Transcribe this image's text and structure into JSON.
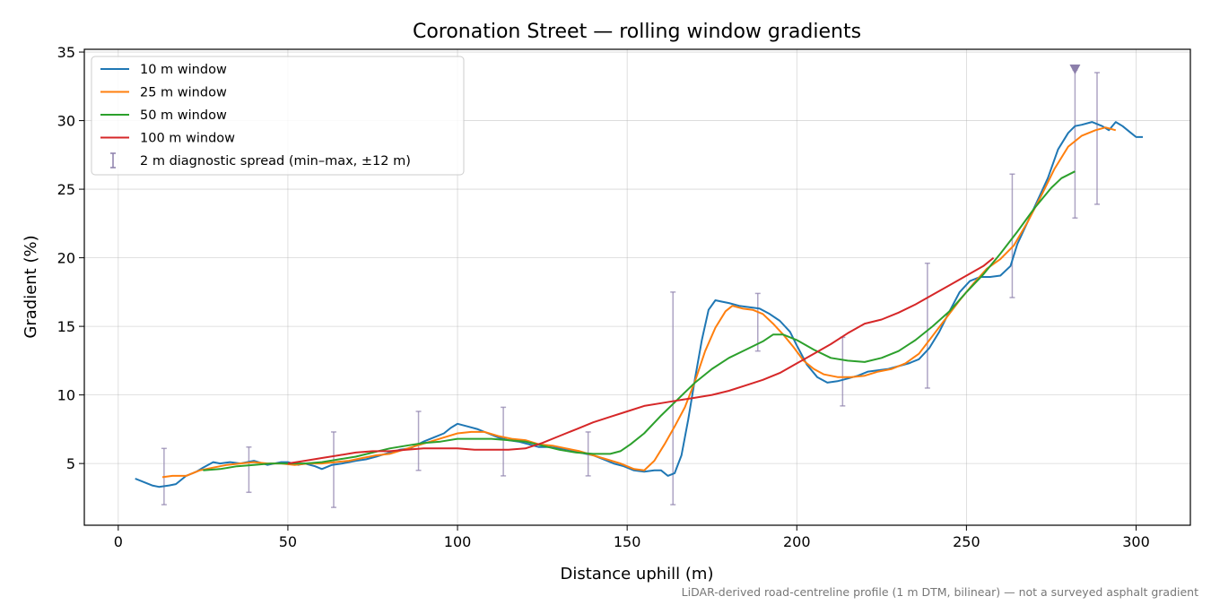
{
  "chart_data": {
    "type": "line",
    "title": "Coronation Street — rolling window gradients",
    "xlabel": "Distance uphill (m)",
    "ylabel": "Gradient (%)",
    "xlim": [
      -10,
      316
    ],
    "ylim": [
      0.5,
      35.2
    ],
    "xticks": [
      0,
      50,
      100,
      150,
      200,
      250,
      300
    ],
    "yticks": [
      5,
      10,
      15,
      20,
      25,
      30,
      35
    ],
    "grid": true,
    "legend_position": "top-left",
    "footnote": "LiDAR-derived road-centreline profile (1 m DTM, bilinear) — not a surveyed asphalt gradient",
    "series": [
      {
        "name": "10 m window",
        "color": "#1f77b4",
        "points": [
          [
            5,
            3.9
          ],
          [
            8,
            3.6
          ],
          [
            10,
            3.4
          ],
          [
            12,
            3.3
          ],
          [
            15,
            3.4
          ],
          [
            17,
            3.5
          ],
          [
            20,
            4.1
          ],
          [
            23,
            4.4
          ],
          [
            25,
            4.7
          ],
          [
            28,
            5.1
          ],
          [
            30,
            5.0
          ],
          [
            33,
            5.1
          ],
          [
            36,
            5.0
          ],
          [
            40,
            5.2
          ],
          [
            44,
            4.9
          ],
          [
            48,
            5.1
          ],
          [
            50,
            5.1
          ],
          [
            53,
            4.9
          ],
          [
            55,
            5.0
          ],
          [
            58,
            4.8
          ],
          [
            60,
            4.6
          ],
          [
            63,
            4.9
          ],
          [
            66,
            5.0
          ],
          [
            70,
            5.2
          ],
          [
            73,
            5.3
          ],
          [
            76,
            5.5
          ],
          [
            80,
            5.8
          ],
          [
            83,
            6.0
          ],
          [
            86,
            6.1
          ],
          [
            90,
            6.6
          ],
          [
            93,
            6.9
          ],
          [
            96,
            7.2
          ],
          [
            98,
            7.6
          ],
          [
            100,
            7.9
          ],
          [
            103,
            7.7
          ],
          [
            106,
            7.5
          ],
          [
            109,
            7.2
          ],
          [
            112,
            6.9
          ],
          [
            115,
            6.7
          ],
          [
            118,
            6.6
          ],
          [
            121,
            6.4
          ],
          [
            124,
            6.2
          ],
          [
            127,
            6.2
          ],
          [
            130,
            6.1
          ],
          [
            133,
            6.0
          ],
          [
            136,
            5.8
          ],
          [
            140,
            5.6
          ],
          [
            143,
            5.3
          ],
          [
            146,
            5.0
          ],
          [
            149,
            4.8
          ],
          [
            152,
            4.5
          ],
          [
            155,
            4.4
          ],
          [
            158,
            4.5
          ],
          [
            160,
            4.5
          ],
          [
            162,
            4.1
          ],
          [
            164,
            4.3
          ],
          [
            166,
            5.6
          ],
          [
            168,
            8.2
          ],
          [
            170,
            11.2
          ],
          [
            172,
            14.0
          ],
          [
            174,
            16.2
          ],
          [
            176,
            16.9
          ],
          [
            178,
            16.8
          ],
          [
            180,
            16.7
          ],
          [
            183,
            16.5
          ],
          [
            186,
            16.4
          ],
          [
            189,
            16.3
          ],
          [
            192,
            15.9
          ],
          [
            195,
            15.4
          ],
          [
            198,
            14.6
          ],
          [
            200,
            13.6
          ],
          [
            203,
            12.2
          ],
          [
            206,
            11.3
          ],
          [
            209,
            10.9
          ],
          [
            212,
            11.0
          ],
          [
            215,
            11.2
          ],
          [
            218,
            11.4
          ],
          [
            221,
            11.7
          ],
          [
            224,
            11.8
          ],
          [
            227,
            11.9
          ],
          [
            230,
            12.1
          ],
          [
            233,
            12.3
          ],
          [
            236,
            12.6
          ],
          [
            239,
            13.4
          ],
          [
            242,
            14.6
          ],
          [
            245,
            16.1
          ],
          [
            248,
            17.5
          ],
          [
            251,
            18.3
          ],
          [
            254,
            18.6
          ],
          [
            257,
            18.6
          ],
          [
            260,
            18.7
          ],
          [
            263,
            19.4
          ],
          [
            265,
            21.0
          ],
          [
            268,
            22.6
          ],
          [
            271,
            24.2
          ],
          [
            274,
            25.8
          ],
          [
            277,
            27.9
          ],
          [
            280,
            29.1
          ],
          [
            282,
            29.6
          ],
          [
            284,
            29.7
          ],
          [
            287,
            29.9
          ],
          [
            290,
            29.6
          ],
          [
            292,
            29.3
          ],
          [
            294,
            29.9
          ],
          [
            296,
            29.6
          ],
          [
            298,
            29.2
          ],
          [
            300,
            28.8
          ],
          [
            302,
            28.8
          ]
        ]
      },
      {
        "name": "25 m window",
        "color": "#ff7f0e",
        "points": [
          [
            13,
            4.0
          ],
          [
            16,
            4.1
          ],
          [
            20,
            4.1
          ],
          [
            24,
            4.5
          ],
          [
            28,
            4.7
          ],
          [
            32,
            4.9
          ],
          [
            36,
            5.0
          ],
          [
            40,
            5.1
          ],
          [
            44,
            5.0
          ],
          [
            48,
            5.0
          ],
          [
            52,
            4.9
          ],
          [
            56,
            5.0
          ],
          [
            60,
            5.0
          ],
          [
            64,
            5.1
          ],
          [
            68,
            5.2
          ],
          [
            72,
            5.4
          ],
          [
            76,
            5.6
          ],
          [
            80,
            5.7
          ],
          [
            84,
            6.0
          ],
          [
            88,
            6.3
          ],
          [
            92,
            6.6
          ],
          [
            96,
            6.9
          ],
          [
            100,
            7.2
          ],
          [
            104,
            7.3
          ],
          [
            108,
            7.3
          ],
          [
            112,
            7.0
          ],
          [
            116,
            6.8
          ],
          [
            120,
            6.7
          ],
          [
            124,
            6.4
          ],
          [
            128,
            6.3
          ],
          [
            132,
            6.1
          ],
          [
            136,
            5.9
          ],
          [
            140,
            5.6
          ],
          [
            144,
            5.3
          ],
          [
            148,
            5.0
          ],
          [
            152,
            4.6
          ],
          [
            155,
            4.5
          ],
          [
            158,
            5.2
          ],
          [
            161,
            6.4
          ],
          [
            164,
            7.7
          ],
          [
            167,
            9.1
          ],
          [
            170,
            11.0
          ],
          [
            173,
            13.2
          ],
          [
            176,
            14.9
          ],
          [
            179,
            16.1
          ],
          [
            181,
            16.5
          ],
          [
            184,
            16.3
          ],
          [
            187,
            16.2
          ],
          [
            190,
            15.9
          ],
          [
            193,
            15.2
          ],
          [
            196,
            14.4
          ],
          [
            199,
            13.5
          ],
          [
            202,
            12.5
          ],
          [
            205,
            11.9
          ],
          [
            208,
            11.5
          ],
          [
            212,
            11.3
          ],
          [
            216,
            11.3
          ],
          [
            220,
            11.4
          ],
          [
            224,
            11.7
          ],
          [
            228,
            11.9
          ],
          [
            232,
            12.3
          ],
          [
            236,
            13.0
          ],
          [
            240,
            14.3
          ],
          [
            244,
            15.6
          ],
          [
            248,
            16.9
          ],
          [
            252,
            18.1
          ],
          [
            256,
            19.2
          ],
          [
            260,
            19.9
          ],
          [
            264,
            20.9
          ],
          [
            268,
            22.6
          ],
          [
            272,
            24.5
          ],
          [
            276,
            26.5
          ],
          [
            280,
            28.1
          ],
          [
            284,
            28.9
          ],
          [
            288,
            29.3
          ],
          [
            291,
            29.5
          ],
          [
            294,
            29.3
          ]
        ]
      },
      {
        "name": "50 m window",
        "color": "#2ca02c",
        "points": [
          [
            25,
            4.5
          ],
          [
            30,
            4.6
          ],
          [
            35,
            4.8
          ],
          [
            40,
            4.9
          ],
          [
            45,
            5.0
          ],
          [
            50,
            5.0
          ],
          [
            55,
            5.0
          ],
          [
            60,
            5.1
          ],
          [
            65,
            5.3
          ],
          [
            70,
            5.5
          ],
          [
            75,
            5.8
          ],
          [
            80,
            6.1
          ],
          [
            85,
            6.3
          ],
          [
            90,
            6.5
          ],
          [
            95,
            6.6
          ],
          [
            100,
            6.8
          ],
          [
            105,
            6.8
          ],
          [
            110,
            6.8
          ],
          [
            115,
            6.7
          ],
          [
            120,
            6.6
          ],
          [
            125,
            6.3
          ],
          [
            130,
            6.0
          ],
          [
            135,
            5.8
          ],
          [
            140,
            5.7
          ],
          [
            145,
            5.7
          ],
          [
            148,
            5.9
          ],
          [
            151,
            6.4
          ],
          [
            155,
            7.2
          ],
          [
            160,
            8.5
          ],
          [
            165,
            9.7
          ],
          [
            170,
            10.9
          ],
          [
            175,
            11.9
          ],
          [
            180,
            12.7
          ],
          [
            185,
            13.3
          ],
          [
            190,
            13.9
          ],
          [
            193,
            14.4
          ],
          [
            196,
            14.4
          ],
          [
            200,
            14.0
          ],
          [
            205,
            13.3
          ],
          [
            210,
            12.7
          ],
          [
            215,
            12.5
          ],
          [
            220,
            12.4
          ],
          [
            225,
            12.7
          ],
          [
            230,
            13.2
          ],
          [
            235,
            14.0
          ],
          [
            240,
            15.0
          ],
          [
            245,
            16.1
          ],
          [
            250,
            17.5
          ],
          [
            255,
            18.8
          ],
          [
            260,
            20.3
          ],
          [
            265,
            21.9
          ],
          [
            270,
            23.6
          ],
          [
            275,
            25.1
          ],
          [
            278,
            25.8
          ],
          [
            282,
            26.3
          ]
        ]
      },
      {
        "name": "100 m window",
        "color": "#d62728",
        "points": [
          [
            50,
            5.0
          ],
          [
            55,
            5.2
          ],
          [
            60,
            5.4
          ],
          [
            65,
            5.6
          ],
          [
            70,
            5.8
          ],
          [
            75,
            5.9
          ],
          [
            80,
            5.9
          ],
          [
            85,
            6.0
          ],
          [
            90,
            6.1
          ],
          [
            95,
            6.1
          ],
          [
            100,
            6.1
          ],
          [
            105,
            6.0
          ],
          [
            110,
            6.0
          ],
          [
            115,
            6.0
          ],
          [
            120,
            6.1
          ],
          [
            125,
            6.5
          ],
          [
            130,
            7.0
          ],
          [
            135,
            7.5
          ],
          [
            140,
            8.0
          ],
          [
            145,
            8.4
          ],
          [
            150,
            8.8
          ],
          [
            155,
            9.2
          ],
          [
            160,
            9.4
          ],
          [
            165,
            9.6
          ],
          [
            170,
            9.8
          ],
          [
            175,
            10.0
          ],
          [
            180,
            10.3
          ],
          [
            185,
            10.7
          ],
          [
            190,
            11.1
          ],
          [
            195,
            11.6
          ],
          [
            200,
            12.3
          ],
          [
            205,
            13.0
          ],
          [
            210,
            13.7
          ],
          [
            215,
            14.5
          ],
          [
            220,
            15.2
          ],
          [
            225,
            15.5
          ],
          [
            230,
            16.0
          ],
          [
            235,
            16.6
          ],
          [
            240,
            17.3
          ],
          [
            245,
            18.0
          ],
          [
            250,
            18.7
          ],
          [
            255,
            19.4
          ],
          [
            258,
            20.0
          ]
        ]
      }
    ],
    "error_bars": {
      "name": "2 m diagnostic spread (min–max, ±12 m)",
      "color": "#8c7fab",
      "items": [
        {
          "x": 13.5,
          "min": 2.0,
          "max": 6.1
        },
        {
          "x": 38.5,
          "min": 2.9,
          "max": 6.2
        },
        {
          "x": 63.5,
          "min": 1.8,
          "max": 7.3
        },
        {
          "x": 88.5,
          "min": 4.5,
          "max": 8.8
        },
        {
          "x": 113.5,
          "min": 4.1,
          "max": 9.1
        },
        {
          "x": 138.5,
          "min": 4.1,
          "max": 7.3
        },
        {
          "x": 163.5,
          "min": 2.0,
          "max": 17.5
        },
        {
          "x": 188.5,
          "min": 13.2,
          "max": 17.4
        },
        {
          "x": 213.5,
          "min": 9.2,
          "max": 14.2
        },
        {
          "x": 238.5,
          "min": 10.5,
          "max": 19.6
        },
        {
          "x": 263.5,
          "min": 17.1,
          "max": 26.1
        },
        {
          "x": 282.0,
          "min": 22.9,
          "max": 33.7
        },
        {
          "x": 288.5,
          "min": 23.9,
          "max": 33.5
        }
      ],
      "marker": {
        "x": 282.0,
        "y": 33.7,
        "shape": "down-triangle"
      }
    }
  }
}
